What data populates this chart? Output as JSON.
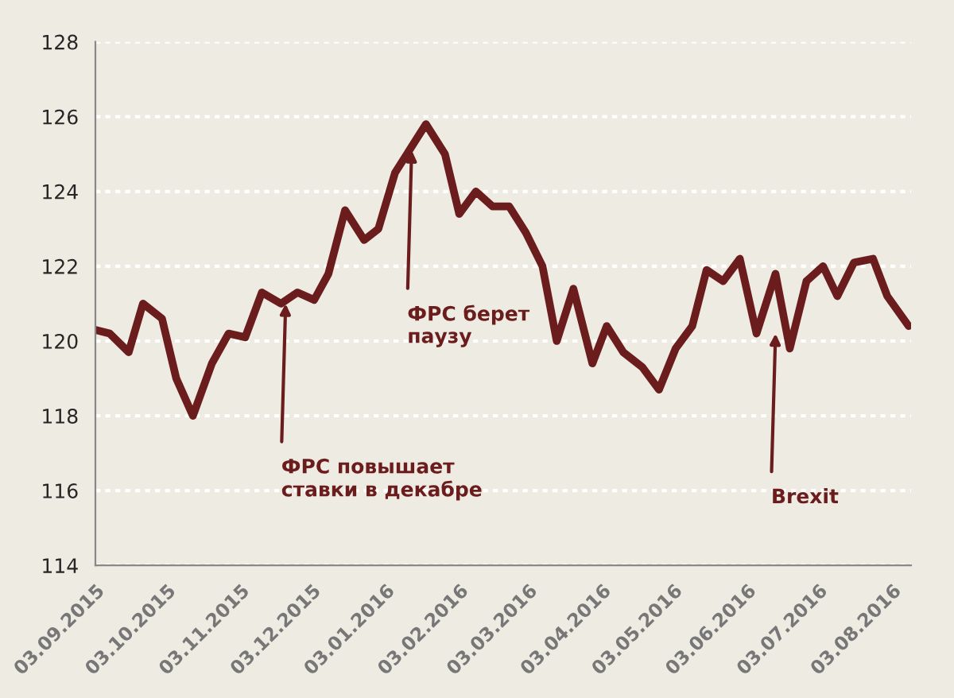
{
  "chart_data": {
    "type": "line",
    "x": [
      "2015-09-03",
      "2015-09-09",
      "2015-09-17",
      "2015-09-23",
      "2015-10-01",
      "2015-10-07",
      "2015-10-14",
      "2015-10-22",
      "2015-10-29",
      "2015-11-05",
      "2015-11-12",
      "2015-11-20",
      "2015-11-27",
      "2015-12-04",
      "2015-12-10",
      "2015-12-17",
      "2015-12-25",
      "2015-12-31",
      "2016-01-07",
      "2016-01-20",
      "2016-01-28",
      "2016-02-03",
      "2016-02-10",
      "2016-02-17",
      "2016-02-24",
      "2016-03-02",
      "2016-03-09",
      "2016-03-15",
      "2016-03-22",
      "2016-03-30",
      "2016-04-05",
      "2016-04-12",
      "2016-04-20",
      "2016-04-27",
      "2016-05-04",
      "2016-05-11",
      "2016-05-17",
      "2016-05-24",
      "2016-05-31",
      "2016-06-07",
      "2016-06-15",
      "2016-06-21",
      "2016-06-28",
      "2016-07-05",
      "2016-07-11",
      "2016-07-18",
      "2016-07-26",
      "2016-08-01",
      "2016-08-10"
    ],
    "series": [
      {
        "color": "#6b1d1d",
        "values": [
          120.3,
          120.2,
          119.7,
          121.0,
          120.6,
          119.0,
          118.0,
          119.4,
          120.2,
          120.1,
          121.3,
          121.0,
          121.3,
          121.1,
          121.8,
          123.5,
          122.7,
          123.0,
          124.5,
          125.8,
          125.0,
          123.4,
          124.0,
          123.6,
          123.6,
          122.9,
          122.0,
          120.0,
          121.4,
          119.4,
          120.4,
          119.7,
          119.3,
          118.7,
          119.8,
          120.4,
          121.9,
          121.6,
          122.2,
          120.2,
          121.8,
          119.8,
          121.6,
          122.0,
          121.2,
          122.1,
          122.2,
          121.2,
          120.4
        ]
      }
    ],
    "xlim": [
      "2015-09-03",
      "2016-08-11"
    ],
    "xticks": [
      {
        "value": "2015-09-03",
        "label": "03.09.2015"
      },
      {
        "value": "2015-10-03",
        "label": "03.10.2015"
      },
      {
        "value": "2015-11-03",
        "label": "03.11.2015"
      },
      {
        "value": "2015-12-03",
        "label": "03.12.2015"
      },
      {
        "value": "2016-01-03",
        "label": "03.01.2016"
      },
      {
        "value": "2016-02-03",
        "label": "03.02.2016"
      },
      {
        "value": "2016-03-03",
        "label": "03.03.2016"
      },
      {
        "value": "2016-04-03",
        "label": "03.04.2016"
      },
      {
        "value": "2016-05-03",
        "label": "03.05.2016"
      },
      {
        "value": "2016-06-03",
        "label": "03.06.2016"
      },
      {
        "value": "2016-07-03",
        "label": "03.07.2016"
      },
      {
        "value": "2016-08-03",
        "label": "03.08.2016"
      }
    ],
    "ylim": [
      114,
      128
    ],
    "yticks": [
      114,
      116,
      118,
      120,
      122,
      124,
      126,
      128
    ],
    "grid": "y",
    "marker": "none",
    "line_style": "solid",
    "annotations": [
      {
        "text": "ФРС повышает\nставки в декабре",
        "x": "2015-11-22",
        "y": 121.0
      },
      {
        "text": "ФРС берет\nпаузу",
        "x": "2016-01-14",
        "y": 125.1
      },
      {
        "text": "Brexit",
        "x": "2016-06-15",
        "y": 120.2
      }
    ]
  }
}
